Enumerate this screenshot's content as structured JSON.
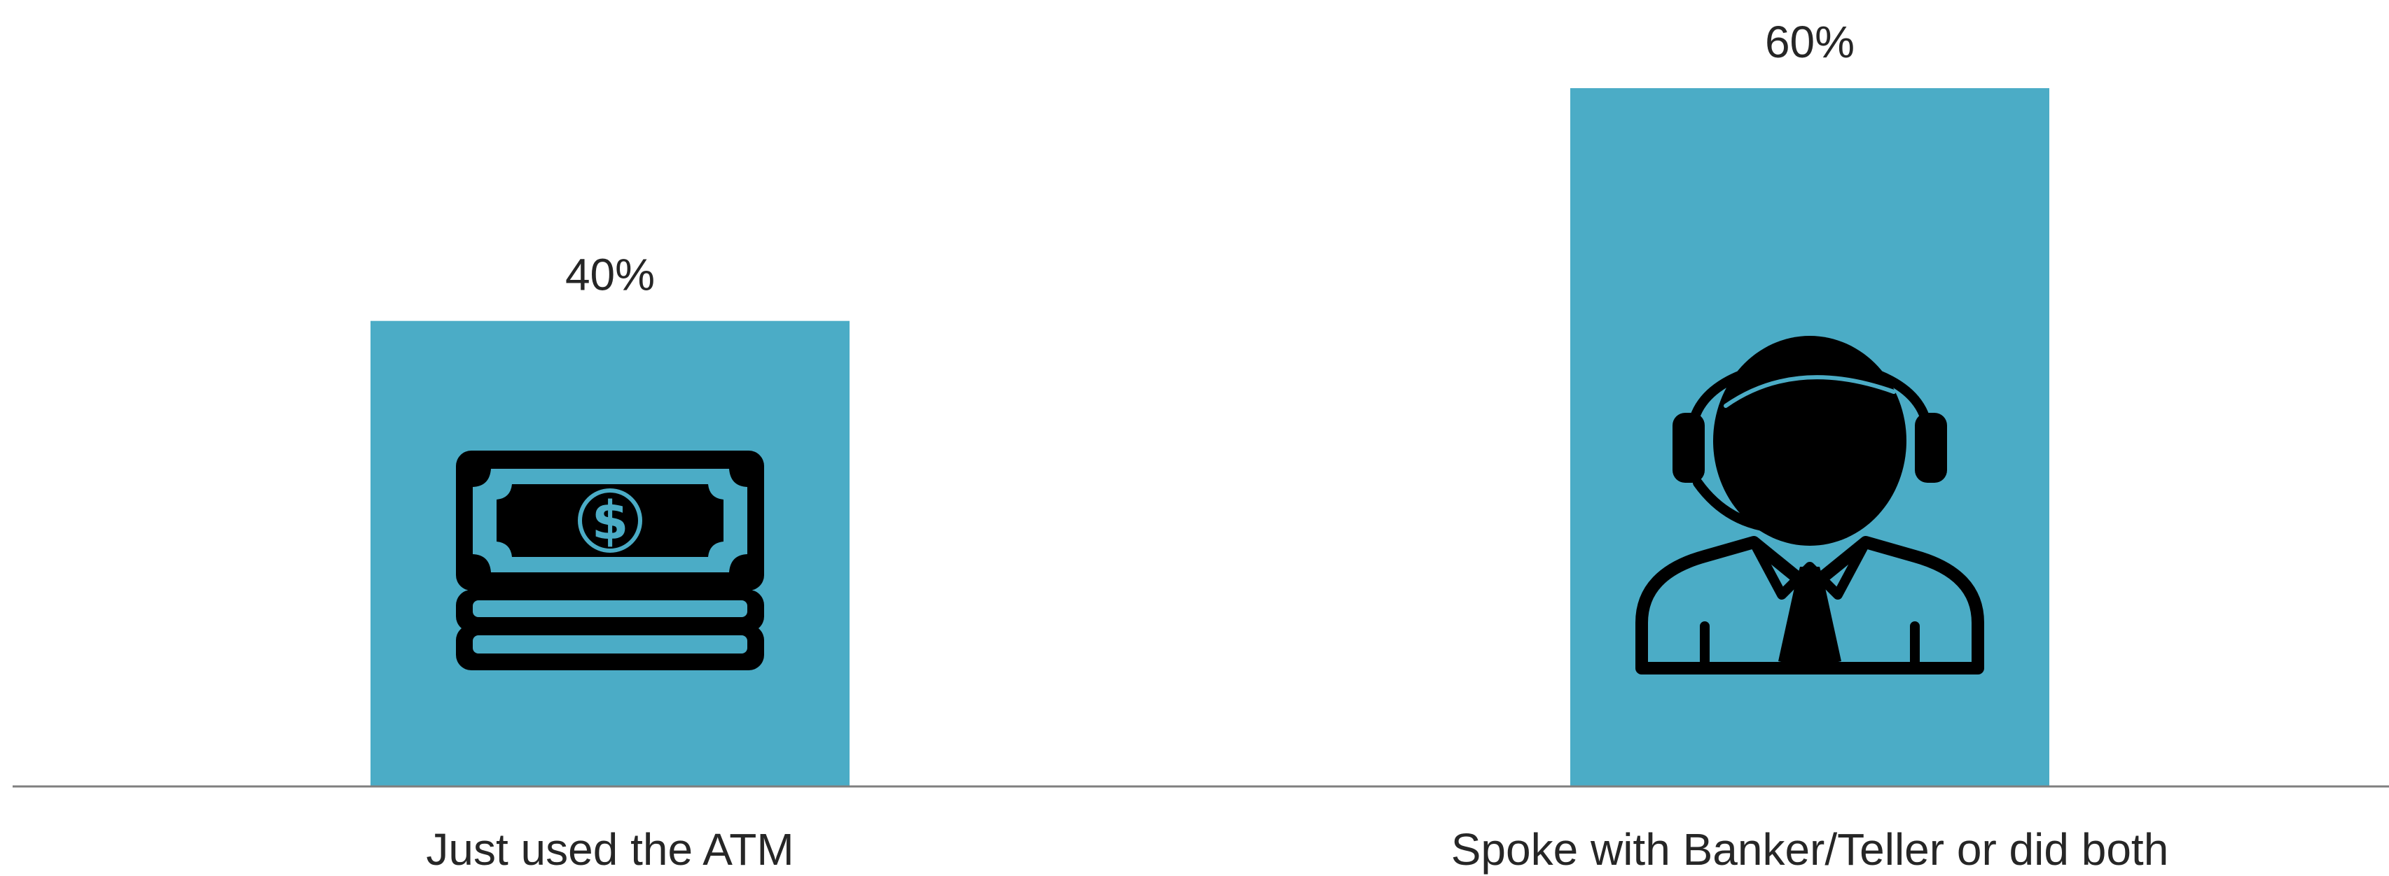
{
  "chart_data": {
    "type": "bar",
    "categories": [
      "Just used the ATM",
      "Spoke with Banker/Teller or did both"
    ],
    "values": [
      40,
      60
    ],
    "value_labels": [
      "40%",
      "60%"
    ],
    "ylim": [
      0,
      60
    ],
    "grid": false,
    "legend": "none",
    "bar_color": "#4BACC6",
    "axis_color": "#7F7F7F",
    "icons": [
      "cash-stack-icon",
      "customer-service-agent-icon"
    ]
  }
}
